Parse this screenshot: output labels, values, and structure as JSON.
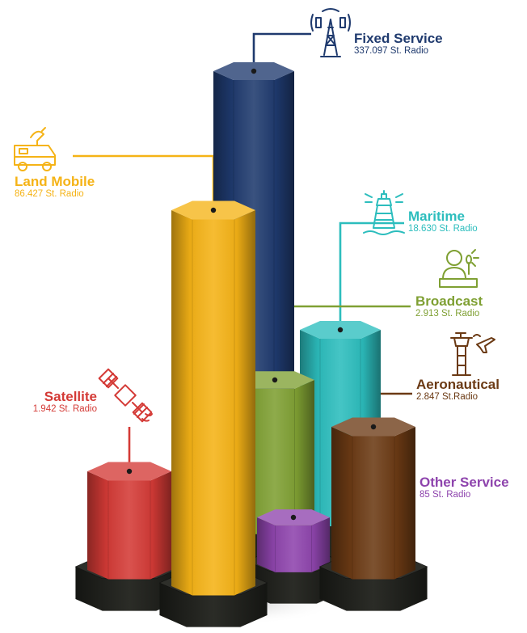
{
  "chart_data": {
    "type": "bar",
    "unit": "St. Radio",
    "categories": [
      "Fixed Service",
      "Land Mobile",
      "Maritime",
      "Broadcast",
      "Aeronautical",
      "Satellite",
      "Other Service"
    ],
    "series": [
      {
        "values": [
          337097,
          86427,
          18630,
          2913,
          2847,
          1942,
          85
        ],
        "value_labels": [
          "337.097 St. Radio",
          "86.427 St. Radio",
          "18.630 St. Radio",
          "2.913 St. Radio",
          "2.847 St.Radio",
          "1.942 St. Radio",
          "85 St. Radio"
        ]
      }
    ],
    "colors": {
      "Fixed Service": "#1f3a6e",
      "Land Mobile": "#f5b316",
      "Maritime": "#2cbdbd",
      "Broadcast": "#7fa033",
      "Aeronautical": "#6b3a14",
      "Satellite": "#d43a36",
      "Other Service": "#8e44ad",
      "base": "#1f201c"
    },
    "icons": {
      "Fixed Service": "radio-tower-icon",
      "Land Mobile": "broadcast-van-icon",
      "Maritime": "lighthouse-icon",
      "Broadcast": "news-anchor-icon",
      "Aeronautical": "control-tower-icon",
      "Satellite": "satellite-icon"
    },
    "grid": false,
    "legend": "none"
  }
}
